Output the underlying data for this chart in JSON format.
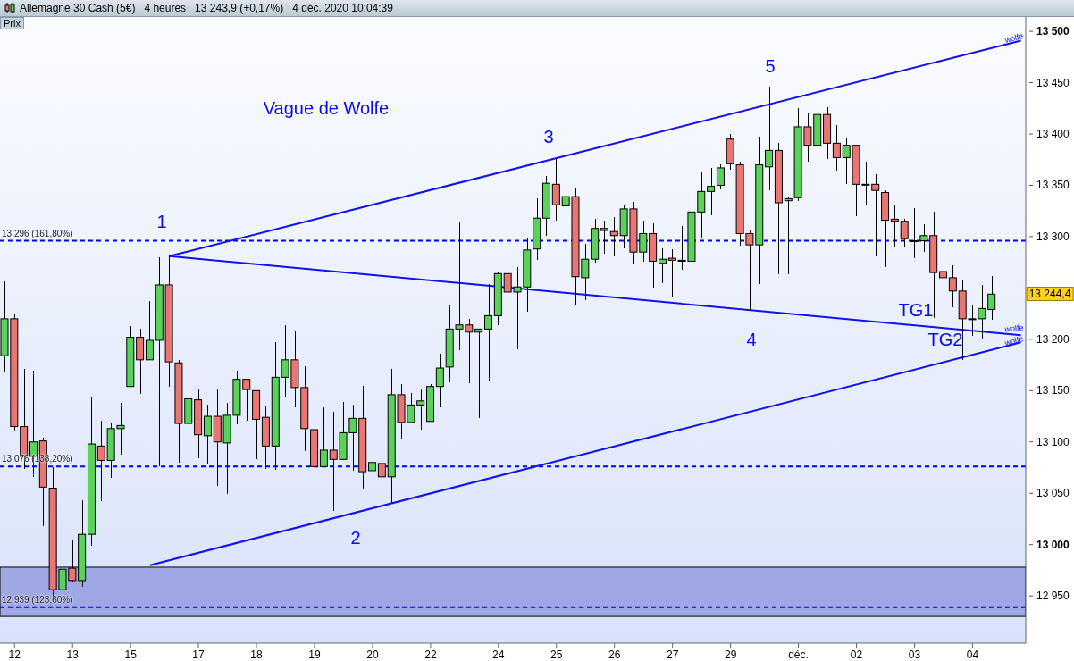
{
  "chart_data": {
    "type": "candlestick",
    "title": "Allemagne 30 Cash (5€)",
    "subtitle": "4 heures   13 243,9 (+0,17%)   4 déc. 2020 10:04:39",
    "ylabel": "Prix",
    "categories": [
      null,
      "12",
      null,
      null,
      null,
      null,
      null,
      "13",
      null,
      null,
      null,
      null,
      null,
      "15",
      null,
      null,
      null,
      null,
      null,
      null,
      "17",
      null,
      null,
      null,
      null,
      null,
      "18",
      null,
      null,
      null,
      null,
      null,
      "19",
      null,
      null,
      null,
      null,
      null,
      "20",
      null,
      null,
      null,
      null,
      null,
      "22",
      null,
      null,
      null,
      null,
      null,
      null,
      "24",
      null,
      null,
      null,
      null,
      null,
      "25",
      null,
      null,
      null,
      null,
      null,
      "26",
      null,
      null,
      null,
      null,
      null,
      "27",
      null,
      null,
      null,
      null,
      null,
      "29",
      null,
      null,
      null,
      null,
      null,
      null,
      "déc.",
      null,
      null,
      null,
      null,
      null,
      "02",
      null,
      null,
      null,
      null,
      null,
      "03",
      null,
      null,
      null,
      null,
      null,
      "04",
      null,
      null,
      null,
      null,
      null
    ],
    "ohlc": [
      [
        13184,
        13256,
        13168,
        13220
      ],
      [
        13220,
        13225,
        13110,
        13115
      ],
      [
        13115,
        13171,
        13074,
        13086
      ],
      [
        13086,
        13169,
        13066,
        13100
      ],
      [
        13101,
        13104,
        13018,
        13056
      ],
      [
        13055,
        13075,
        12946,
        12956
      ],
      [
        12956,
        13019,
        12936,
        12976
      ],
      [
        12977,
        13005,
        12964,
        12965
      ],
      [
        12965,
        13043,
        12959,
        13010
      ],
      [
        13010,
        13143,
        12999,
        13098
      ],
      [
        13096,
        13121,
        13042,
        13082
      ],
      [
        13082,
        13119,
        13065,
        13113
      ],
      [
        13113,
        13138,
        13088,
        13116
      ],
      [
        13154,
        13213,
        13154,
        13202
      ],
      [
        13202,
        13210,
        13147,
        13180
      ],
      [
        13180,
        13237,
        13180,
        13199
      ],
      [
        13199,
        13280,
        13076,
        13253
      ],
      [
        13253,
        13282,
        13154,
        13178
      ],
      [
        13177,
        13180,
        13080,
        13118
      ],
      [
        13118,
        13165,
        13102,
        13142
      ],
      [
        13141,
        13151,
        13084,
        13107
      ],
      [
        13106,
        13136,
        13079,
        13125
      ],
      [
        13125,
        13152,
        13057,
        13100
      ],
      [
        13099,
        13138,
        13049,
        13126
      ],
      [
        13126,
        13169,
        13117,
        13161
      ],
      [
        13161,
        13161,
        13121,
        13151
      ],
      [
        13150,
        13150,
        13083,
        13122
      ],
      [
        13124,
        13135,
        13074,
        13096
      ],
      [
        13096,
        13197,
        13073,
        13163
      ],
      [
        13163,
        13214,
        13144,
        13180
      ],
      [
        13180,
        13209,
        13134,
        13153
      ],
      [
        13153,
        13174,
        13091,
        13113
      ],
      [
        13112,
        13117,
        13064,
        13076
      ],
      [
        13076,
        13134,
        13076,
        13092
      ],
      [
        13092,
        13129,
        13033,
        13083
      ],
      [
        13083,
        13139,
        13082,
        13109
      ],
      [
        13109,
        13136,
        13072,
        13123
      ],
      [
        13123,
        13155,
        13054,
        13071
      ],
      [
        13072,
        13103,
        13072,
        13080
      ],
      [
        13079,
        13104,
        13062,
        13066
      ],
      [
        13066,
        13171,
        13041,
        13146
      ],
      [
        13146,
        13156,
        13102,
        13119
      ],
      [
        13119,
        13148,
        13118,
        13136
      ],
      [
        13136,
        13152,
        13112,
        13140
      ],
      [
        13120,
        13156,
        13120,
        13154
      ],
      [
        13154,
        13186,
        13134,
        13172
      ],
      [
        13173,
        13233,
        13158,
        13210
      ],
      [
        13210,
        13315,
        13189,
        13214
      ],
      [
        13214,
        13220,
        13157,
        13207
      ],
      [
        13207,
        13210,
        13123,
        13210
      ],
      [
        13210,
        13254,
        13160,
        13223
      ],
      [
        13223,
        13266,
        13214,
        13264
      ],
      [
        13264,
        13272,
        13229,
        13246
      ],
      [
        13246,
        13270,
        13190,
        13251
      ],
      [
        13251,
        13298,
        13227,
        13287
      ],
      [
        13288,
        13337,
        13277,
        13318
      ],
      [
        13318,
        13359,
        13301,
        13352
      ],
      [
        13351,
        13376,
        13316,
        13331
      ],
      [
        13330,
        13340,
        13274,
        13339
      ],
      [
        13339,
        13347,
        13234,
        13261
      ],
      [
        13260,
        13293,
        13238,
        13278
      ],
      [
        13278,
        13317,
        13275,
        13308
      ],
      [
        13308,
        13316,
        13283,
        13306
      ],
      [
        13305,
        13319,
        13281,
        13301
      ],
      [
        13301,
        13331,
        13289,
        13327
      ],
      [
        13327,
        13334,
        13273,
        13285
      ],
      [
        13285,
        13316,
        13276,
        13303
      ],
      [
        13303,
        13313,
        13250,
        13276
      ],
      [
        13274,
        13289,
        13255,
        13278
      ],
      [
        13279,
        13288,
        13242,
        13277
      ],
      [
        13276,
        13310,
        13268,
        13277
      ],
      [
        13276,
        13341,
        13276,
        13324
      ],
      [
        13324,
        13363,
        13298,
        13344
      ],
      [
        13344,
        13367,
        13321,
        13349
      ],
      [
        13350,
        13370,
        13346,
        13367
      ],
      [
        13395,
        13400,
        13365,
        13371
      ],
      [
        13370,
        13373,
        13291,
        13303
      ],
      [
        13303,
        13306,
        13228,
        13292
      ],
      [
        13292,
        13397,
        13254,
        13370
      ],
      [
        13368,
        13446,
        13345,
        13384
      ],
      [
        13384,
        13391,
        13263,
        13333
      ],
      [
        13335,
        13339,
        13263,
        13337
      ],
      [
        13338,
        13425,
        13335,
        13407
      ],
      [
        13407,
        13421,
        13373,
        13389
      ],
      [
        13389,
        13436,
        13334,
        13419
      ],
      [
        13419,
        13426,
        13376,
        13391
      ],
      [
        13391,
        13409,
        13364,
        13377
      ],
      [
        13377,
        13396,
        13351,
        13389
      ],
      [
        13389,
        13389,
        13320,
        13351
      ],
      [
        13351,
        13373,
        13331,
        13351
      ],
      [
        13351,
        13361,
        13281,
        13345
      ],
      [
        13343,
        13345,
        13270,
        13316
      ],
      [
        13317,
        13330,
        13290,
        13315
      ],
      [
        13315,
        13317,
        13290,
        13298
      ],
      [
        13296,
        13328,
        13279,
        13296
      ],
      [
        13296,
        13312,
        13285,
        13301
      ],
      [
        13301,
        13324,
        13221,
        13265
      ],
      [
        13266,
        13272,
        13237,
        13260
      ],
      [
        13260,
        13272,
        13231,
        13247
      ],
      [
        13247,
        13258,
        13180,
        13220
      ],
      [
        13220,
        13233,
        13203,
        13220
      ],
      [
        13220,
        13253,
        13201,
        13230
      ],
      [
        13229,
        13262,
        13219,
        13244
      ],
      null,
      null,
      null
    ],
    "colors": [
      "#5ad25a",
      "#e97673",
      "#e97673",
      "#5ad25a",
      "#e97673",
      "#e97673",
      "#5ad25a",
      "#e97673",
      "#5ad25a",
      "#5ad25a",
      "#e97673",
      "#5ad25a",
      "#5ad25a",
      "#5ad25a",
      "#e97673",
      "#5ad25a",
      "#5ad25a",
      "#e97673",
      "#e97673",
      "#5ad25a",
      "#e97673",
      "#5ad25a",
      "#e97673",
      "#5ad25a",
      "#5ad25a",
      "#e97673",
      "#e97673",
      "#e97673",
      "#5ad25a",
      "#5ad25a",
      "#e97673",
      "#e97673",
      "#e97673",
      "#5ad25a",
      "#e97673",
      "#5ad25a",
      "#5ad25a",
      "#e97673",
      "#5ad25a",
      "#e97673",
      "#5ad25a",
      "#e97673",
      "#5ad25a",
      "#5ad25a",
      "#5ad25a",
      "#5ad25a",
      "#5ad25a",
      "#5ad25a",
      "#e97673",
      "#5ad25a",
      "#5ad25a",
      "#5ad25a",
      "#e97673",
      "#5ad25a",
      "#5ad25a",
      "#5ad25a",
      "#5ad25a",
      "#e97673",
      "#5ad25a",
      "#e97673",
      "#5ad25a",
      "#5ad25a",
      "#e97673",
      "#e97673",
      "#5ad25a",
      "#e97673",
      "#5ad25a",
      "#e97673",
      "#5ad25a",
      "#e97673",
      "#5ad25a",
      "#5ad25a",
      "#5ad25a",
      "#5ad25a",
      "#5ad25a",
      "#e97673",
      "#e97673",
      "#e97673",
      "#5ad25a",
      "#5ad25a",
      "#e97673",
      "#5ad25a",
      "#5ad25a",
      "#e97673",
      "#5ad25a",
      "#e97673",
      "#e97673",
      "#5ad25a",
      "#e97673",
      "#e97673",
      "#e97673",
      "#e97673",
      "#e97673",
      "#e97673",
      "#e97673",
      "#5ad25a",
      "#e97673",
      "#e97673",
      "#e97673",
      "#e97673",
      "#e97673",
      "#5ad25a",
      "#5ad25a",
      null,
      null,
      null
    ],
    "series": [
      {
        "type": "line",
        "color": "#1010f0",
        "values": [
          null,
          null,
          null,
          null,
          null,
          null,
          null,
          null,
          null,
          null,
          null,
          null,
          null,
          null,
          null,
          null,
          null,
          13281,
          null,
          null,
          null,
          null,
          null,
          null,
          null,
          null,
          null,
          null,
          null,
          null,
          null,
          null,
          null,
          null,
          null,
          null,
          null,
          null,
          null,
          null,
          null,
          null,
          null,
          null,
          null,
          null,
          null,
          null,
          null,
          null,
          null,
          null,
          null,
          null,
          null,
          null,
          null,
          null,
          null,
          null,
          null,
          null,
          null,
          null,
          null,
          null,
          null,
          null,
          null,
          null,
          null,
          null,
          null,
          null,
          null,
          null,
          null,
          null,
          null,
          null,
          null,
          null,
          null,
          null,
          null,
          null,
          null,
          null,
          null,
          null,
          null,
          null,
          null,
          null,
          null,
          null,
          null,
          null,
          null,
          null,
          null,
          null,
          null,
          null,
          null,
          13491
        ]
      },
      {
        "type": "line",
        "color": "#1010f0",
        "values": [
          null,
          null,
          null,
          null,
          null,
          null,
          null,
          null,
          null,
          null,
          null,
          null,
          null,
          null,
          null,
          null,
          null,
          13281,
          null,
          null,
          null,
          null,
          null,
          null,
          null,
          null,
          null,
          null,
          null,
          null,
          null,
          null,
          null,
          null,
          null,
          null,
          null,
          null,
          null,
          null,
          null,
          null,
          null,
          null,
          null,
          null,
          null,
          null,
          null,
          null,
          null,
          null,
          null,
          null,
          null,
          null,
          null,
          null,
          null,
          null,
          null,
          null,
          null,
          null,
          null,
          null,
          null,
          null,
          null,
          null,
          null,
          null,
          null,
          null,
          null,
          null,
          null,
          null,
          null,
          null,
          null,
          null,
          null,
          null,
          null,
          null,
          null,
          null,
          null,
          null,
          null,
          null,
          null,
          null,
          null,
          null,
          null,
          null,
          null,
          null,
          null,
          null,
          null,
          null,
          null,
          13204
        ]
      },
      {
        "type": "line",
        "color": "#1010f0",
        "values": [
          null,
          null,
          null,
          null,
          null,
          null,
          null,
          null,
          null,
          null,
          null,
          null,
          null,
          null,
          null,
          12980,
          null,
          null,
          null,
          null,
          null,
          null,
          null,
          null,
          null,
          null,
          null,
          null,
          null,
          null,
          null,
          null,
          null,
          null,
          null,
          null,
          null,
          null,
          null,
          null,
          null,
          null,
          null,
          null,
          null,
          null,
          null,
          null,
          null,
          null,
          null,
          null,
          null,
          null,
          null,
          null,
          null,
          null,
          null,
          null,
          null,
          null,
          null,
          null,
          null,
          null,
          null,
          null,
          null,
          null,
          null,
          null,
          null,
          null,
          null,
          null,
          null,
          null,
          null,
          null,
          null,
          null,
          null,
          null,
          null,
          null,
          null,
          null,
          null,
          null,
          null,
          null,
          null,
          null,
          null,
          null,
          null,
          null,
          null,
          null,
          null,
          null,
          null,
          null,
          null,
          13197
        ]
      }
    ],
    "ylim": [
      12904,
      13514
    ],
    "yticks": [
      {
        "value": 12950,
        "label": "12 950"
      },
      {
        "value": 13000,
        "label": "13 000"
      },
      {
        "value": 13050,
        "label": "13 050"
      },
      {
        "value": 13100,
        "label": "13 100"
      },
      {
        "value": 13150,
        "label": "13 150"
      },
      {
        "value": 13200,
        "label": "13 200"
      },
      {
        "value": 13250,
        "label": null
      },
      {
        "value": 13300,
        "label": "13 300"
      },
      {
        "value": 13350,
        "label": "13 350"
      },
      {
        "value": 13400,
        "label": "13 400"
      },
      {
        "value": 13450,
        "label": "13 450"
      },
      {
        "value": 13500,
        "label": "13 500"
      }
    ],
    "ref_lines": [
      {
        "axis": "y",
        "value": 13296,
        "label": "13 296 (161,80%)",
        "color": "#0000ee",
        "line_style": "dashed"
      },
      {
        "axis": "y",
        "value": 13076,
        "label": "13 076 (138,20%)",
        "color": "#0000ee",
        "line_style": "dashed"
      },
      {
        "axis": "y",
        "value": 12939,
        "label": "12 939 (123,60%)",
        "color": "#0000ee",
        "line_style": "dashed"
      }
    ],
    "bands": [
      {
        "axis": "y",
        "from": 12930,
        "to": 12978,
        "color": "#9fa8e3"
      }
    ],
    "annotations": [
      "Vague de Wolfe",
      "1",
      "2",
      "3",
      "4",
      "5",
      "TG1",
      "TG2",
      "wolfe",
      "wolfe",
      "wolfe",
      "13 244,4"
    ]
  }
}
